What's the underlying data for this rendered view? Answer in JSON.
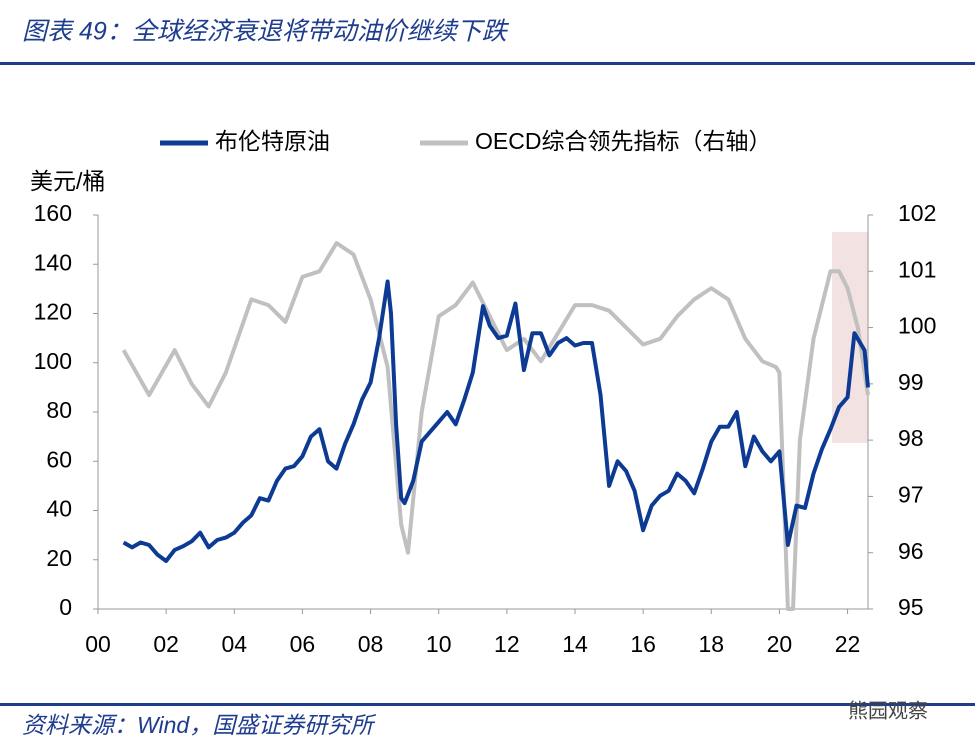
{
  "chart_data": {
    "type": "line",
    "title": "图表 49：全球经济衰退将带动油价继续下跌",
    "source": "资料来源：Wind，国盛证券研究所",
    "watermark": "熊园观察",
    "y_label": "美元/桶",
    "xlim": [
      2000,
      2022.6
    ],
    "xticks": [
      {
        "value": 2000,
        "label": "00"
      },
      {
        "value": 2002,
        "label": "02"
      },
      {
        "value": 2004,
        "label": "04"
      },
      {
        "value": 2006,
        "label": "06"
      },
      {
        "value": 2008,
        "label": "08"
      },
      {
        "value": 2010,
        "label": "10"
      },
      {
        "value": 2012,
        "label": "12"
      },
      {
        "value": 2014,
        "label": "14"
      },
      {
        "value": 2016,
        "label": "16"
      },
      {
        "value": 2018,
        "label": "18"
      },
      {
        "value": 2020,
        "label": "20"
      },
      {
        "value": 2022,
        "label": "22"
      }
    ],
    "ylim": [
      0,
      160
    ],
    "yticks": [
      0,
      20,
      40,
      60,
      80,
      100,
      120,
      140,
      160
    ],
    "y2lim": [
      95,
      102
    ],
    "y2ticks": [
      95,
      96,
      97,
      98,
      99,
      100,
      101,
      102
    ],
    "legend": "top",
    "series": [
      {
        "name": "布伦特原油",
        "color": "#0d3b94",
        "x": [
          2000.75,
          2001.0,
          2001.25,
          2001.5,
          2001.75,
          2002.0,
          2002.25,
          2002.5,
          2002.75,
          2003.0,
          2003.25,
          2003.5,
          2003.75,
          2004.0,
          2004.25,
          2004.5,
          2004.75,
          2005.0,
          2005.25,
          2005.5,
          2005.75,
          2006.0,
          2006.25,
          2006.5,
          2006.75,
          2007.0,
          2007.25,
          2007.5,
          2007.75,
          2008.0,
          2008.25,
          2008.5,
          2008.6,
          2008.75,
          2008.9,
          2009.0,
          2009.25,
          2009.5,
          2009.75,
          2010.0,
          2010.25,
          2010.5,
          2010.75,
          2011.0,
          2011.3,
          2011.5,
          2011.75,
          2012.0,
          2012.25,
          2012.5,
          2012.75,
          2013.0,
          2013.25,
          2013.5,
          2013.75,
          2014.0,
          2014.25,
          2014.5,
          2014.75,
          2015.0,
          2015.25,
          2015.5,
          2015.75,
          2016.0,
          2016.25,
          2016.5,
          2016.75,
          2017.0,
          2017.25,
          2017.5,
          2017.75,
          2018.0,
          2018.25,
          2018.5,
          2018.75,
          2019.0,
          2019.25,
          2019.5,
          2019.75,
          2020.0,
          2020.25,
          2020.5,
          2020.75,
          2021.0,
          2021.25,
          2021.5,
          2021.75,
          2022.0,
          2022.2,
          2022.5,
          2022.6
        ],
        "values": [
          27,
          25,
          27,
          26,
          22,
          19.5,
          24,
          25.5,
          27.5,
          31,
          25,
          28,
          29,
          31,
          35,
          38,
          45,
          44,
          52,
          57,
          58,
          62,
          70,
          73,
          60,
          57,
          67,
          75,
          85,
          92,
          110,
          133,
          120,
          75,
          45,
          43,
          52,
          68,
          72,
          76,
          80,
          75,
          85,
          96,
          123,
          115,
          110,
          111,
          124,
          97,
          112,
          112,
          103,
          108,
          110,
          107,
          108,
          108,
          87,
          50,
          60,
          56,
          48,
          32,
          42,
          46,
          48,
          55,
          52,
          47,
          57,
          68,
          74,
          74,
          80,
          58,
          70,
          64,
          60,
          64,
          26,
          42,
          41,
          55,
          65,
          73,
          82,
          86,
          112,
          105,
          90
        ]
      },
      {
        "name": "OECD综合领先指标（右轴）",
        "color": "#c0c0c0",
        "axis": "y2",
        "x": [
          2000.75,
          2001.5,
          2002.25,
          2002.75,
          2003.25,
          2003.75,
          2004.5,
          2005.0,
          2005.5,
          2006.0,
          2006.5,
          2007.0,
          2007.5,
          2008.0,
          2008.5,
          2008.9,
          2009.1,
          2009.5,
          2010.0,
          2010.5,
          2011.0,
          2011.5,
          2012.0,
          2012.5,
          2013.0,
          2013.5,
          2014.0,
          2014.5,
          2015.0,
          2015.5,
          2016.0,
          2016.5,
          2017.0,
          2017.5,
          2018.0,
          2018.5,
          2019.0,
          2019.5,
          2019.9,
          2020.0,
          2020.25,
          2020.4,
          2020.6,
          2021.0,
          2021.5,
          2021.75,
          2022.0,
          2022.3,
          2022.6
        ],
        "values": [
          99.6,
          98.8,
          99.6,
          99.0,
          98.6,
          99.2,
          100.5,
          100.4,
          100.1,
          100.9,
          101.0,
          101.5,
          101.3,
          100.5,
          99.3,
          96.5,
          96.0,
          98.5,
          100.2,
          100.4,
          100.8,
          100.2,
          99.6,
          99.8,
          99.4,
          99.9,
          100.4,
          100.4,
          100.3,
          100.0,
          99.7,
          99.8,
          100.2,
          100.5,
          100.7,
          100.5,
          99.8,
          99.4,
          99.3,
          99.2,
          95.0,
          95.0,
          98.0,
          99.8,
          101.0,
          101.0,
          100.7,
          100.0,
          98.8
        ]
      }
    ]
  }
}
